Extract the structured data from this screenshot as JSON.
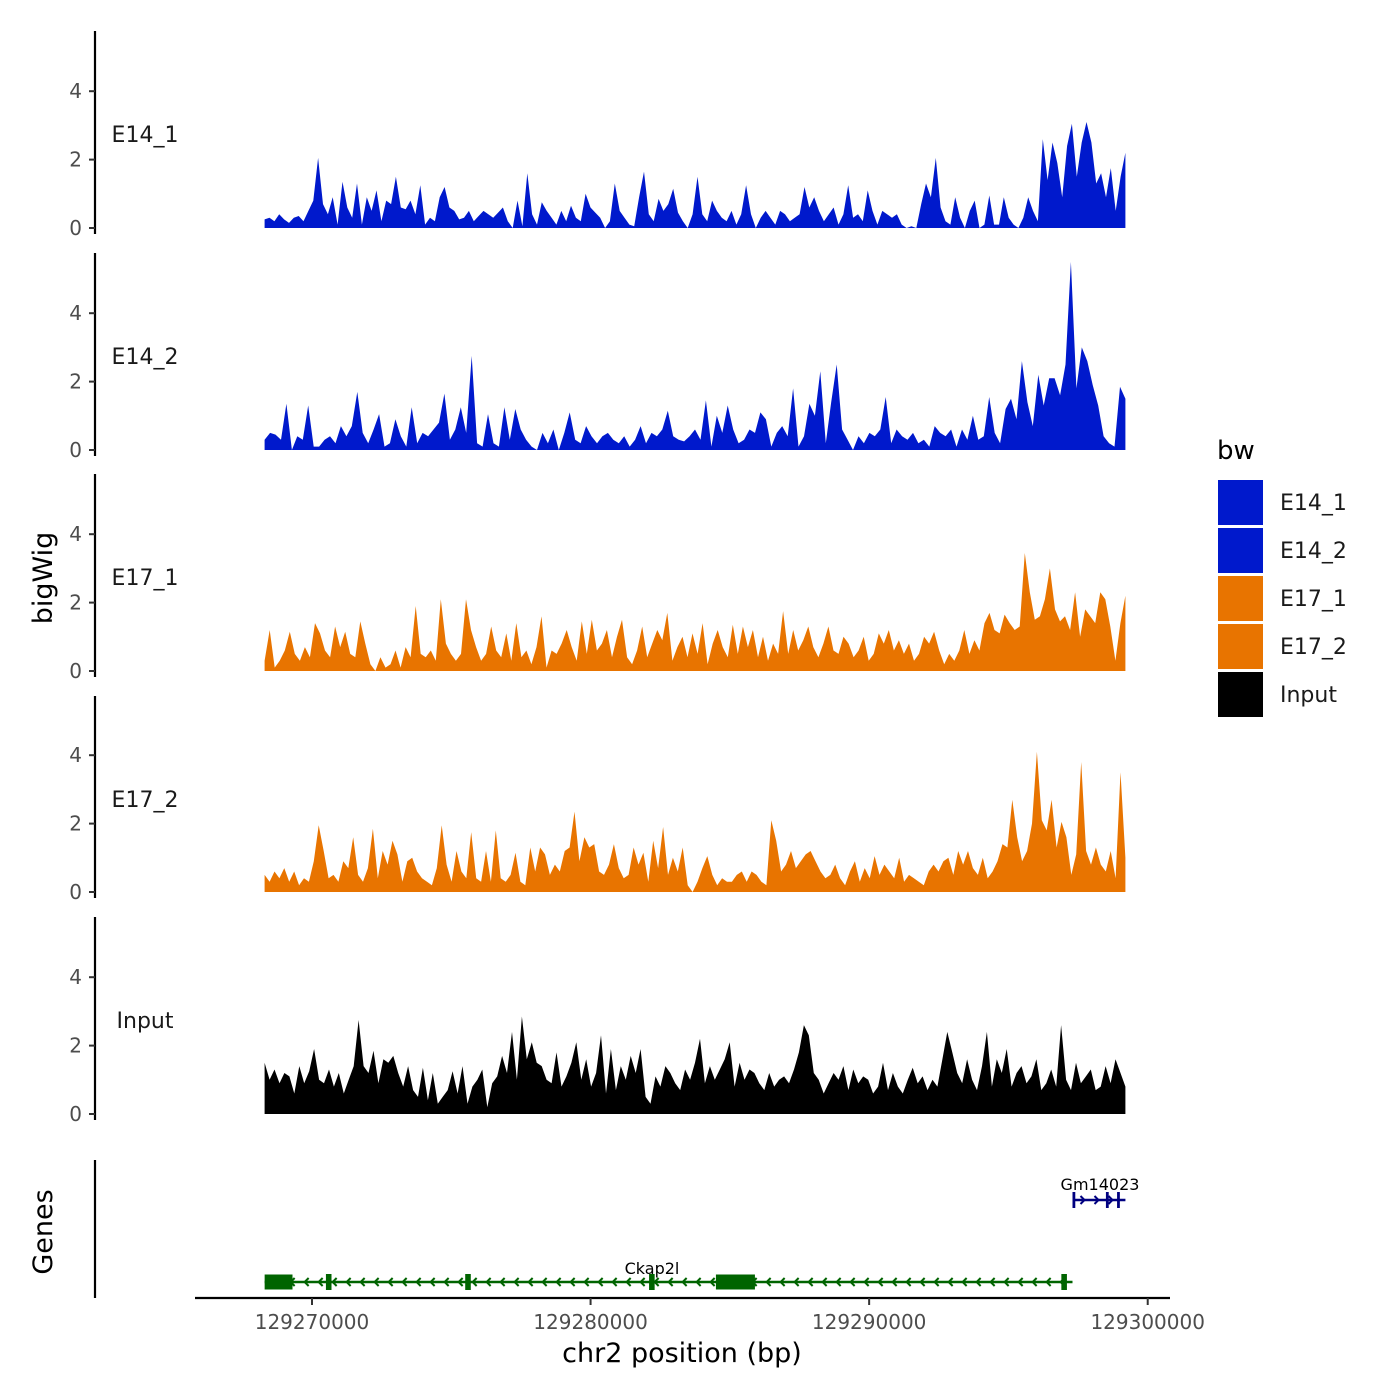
{
  "chart_data": {
    "type": "area",
    "title": "",
    "ylabel": "bigWig",
    "genes_ylabel": "Genes",
    "xlabel": "chr2 position (bp)",
    "xlim": [
      129265800,
      129300800
    ],
    "data_range": [
      129268300,
      129299200
    ],
    "ylim": [
      0,
      5.8
    ],
    "yticks": [
      0,
      2,
      4
    ],
    "xticks": [
      129270000,
      129280000,
      129290000,
      129300000
    ],
    "xtick_labels": [
      "129270000",
      "129280000",
      "129290000",
      "129300000"
    ],
    "legend": {
      "title": "bw",
      "position": "right",
      "entries": [
        {
          "name": "E14_1",
          "color": "#0019CC"
        },
        {
          "name": "E14_2",
          "color": "#0019CC"
        },
        {
          "name": "E17_1",
          "color": "#E87400"
        },
        {
          "name": "E17_2",
          "color": "#E87400"
        },
        {
          "name": "Input",
          "color": "#000000"
        }
      ]
    },
    "tracks": [
      {
        "name": "E14_1",
        "color": "#0019CC",
        "values": [
          0.25,
          0.3,
          0.2,
          0.4,
          0.25,
          0.15,
          0.3,
          0.35,
          0.2,
          0.5,
          0.8,
          2.05,
          0.7,
          0.4,
          0.9,
          0.1,
          1.35,
          0.6,
          0.3,
          1.3,
          0.1,
          0.9,
          0.5,
          1.1,
          0.2,
          0.8,
          0.7,
          1.5,
          0.6,
          0.55,
          0.8,
          0.4,
          1.25,
          0.1,
          0.3,
          0.2,
          0.9,
          1.2,
          0.6,
          0.5,
          0.25,
          0.3,
          0.5,
          0.2,
          0.35,
          0.5,
          0.4,
          0.3,
          0.45,
          0.6,
          0.2,
          0,
          0.8,
          0.05,
          1.6,
          0.4,
          0.1,
          0.75,
          0.5,
          0.3,
          0.1,
          0.5,
          0.2,
          0.65,
          0.3,
          0.2,
          1.0,
          0.6,
          0.45,
          0.3,
          0,
          0.2,
          1.3,
          0.5,
          0.3,
          0.1,
          0.05,
          0.9,
          1.65,
          0.4,
          0.2,
          0.85,
          0.5,
          0.7,
          1.15,
          0.45,
          0.2,
          0,
          0.4,
          1.5,
          0.4,
          0.2,
          0.8,
          0.5,
          0.3,
          0.2,
          0.5,
          0.1,
          0.4,
          1.25,
          0.4,
          0,
          0.3,
          0.5,
          0.3,
          0.1,
          0.5,
          0.4,
          0.2,
          0.3,
          0.4,
          1.2,
          0.6,
          0.9,
          0.5,
          0.2,
          0.4,
          0.6,
          0.1,
          0.4,
          1.25,
          0.3,
          0.4,
          0.2,
          1.1,
          0.5,
          0.1,
          0.5,
          0.4,
          0.3,
          0.4,
          0.1,
          0,
          0.05,
          0,
          0.7,
          1.3,
          0.9,
          2.05,
          0.6,
          0.2,
          0.1,
          0.9,
          0.3,
          0,
          0.5,
          0.8,
          0,
          0.1,
          0.95,
          0.1,
          0.1,
          0.9,
          0.3,
          0.1,
          0,
          0.3,
          0.9,
          0.5,
          0.2,
          2.6,
          1.4,
          2.5,
          1.9,
          0.9,
          2.4,
          3.05,
          1.5,
          2.5,
          3.1,
          2.5,
          1.3,
          1.6,
          0.9,
          1.75,
          0.5,
          1.5,
          2.2
        ]
      },
      {
        "name": "E14_2",
        "color": "#0019CC",
        "values": [
          0.3,
          0.5,
          0.45,
          0.3,
          1.35,
          0,
          0.4,
          0.3,
          1.3,
          0.1,
          0.1,
          0.3,
          0.4,
          0.2,
          0.7,
          0.4,
          0.7,
          1.7,
          0.5,
          0.2,
          0.6,
          1.05,
          0.1,
          0.2,
          0.9,
          0.4,
          0.1,
          1.25,
          0.2,
          0.5,
          0.4,
          0.6,
          0.8,
          1.65,
          0.3,
          0.6,
          1.25,
          0.5,
          2.75,
          0.2,
          0.1,
          1.05,
          0.2,
          0.1,
          1.25,
          0.3,
          1.2,
          0.6,
          0.3,
          0.1,
          0,
          0.5,
          0.2,
          0.6,
          0,
          0.5,
          1.1,
          0.3,
          0.2,
          0.7,
          0.4,
          0.2,
          0.4,
          0.5,
          0.3,
          0.2,
          0.4,
          0.1,
          0.3,
          0.7,
          0.2,
          0.5,
          0.4,
          0.6,
          1.15,
          0.4,
          0.3,
          0.25,
          0.4,
          0.6,
          0.3,
          1.45,
          0.1,
          1.0,
          0.5,
          1.3,
          0.6,
          0.2,
          0.3,
          0.6,
          0.5,
          1.1,
          0.9,
          0.1,
          0.5,
          0.7,
          0.4,
          1.8,
          0.1,
          0.4,
          1.35,
          1.0,
          2.3,
          0.2,
          1.4,
          2.5,
          0.6,
          0.3,
          0,
          0.4,
          0.2,
          0.5,
          0.4,
          0.6,
          1.55,
          0.2,
          0.6,
          0.4,
          0.3,
          0.5,
          0.2,
          0.3,
          0.1,
          0.7,
          0.5,
          0.4,
          0.6,
          0.1,
          0.6,
          0.3,
          1.0,
          0.3,
          0.4,
          1.55,
          0.5,
          0.2,
          1.2,
          1.5,
          0.9,
          2.6,
          1.4,
          0.7,
          2.2,
          1.3,
          2.1,
          2.1,
          1.6,
          2.5,
          5.5,
          1.8,
          3.0,
          2.6,
          1.9,
          1.3,
          0.4,
          0.2,
          0.1,
          1.85,
          1.5
        ]
      },
      {
        "name": "E17_1",
        "color": "#E87400",
        "values": [
          0.3,
          1.2,
          0.1,
          0.3,
          0.6,
          1.15,
          0.5,
          0.3,
          0.7,
          0.4,
          1.4,
          1.1,
          0.6,
          0.4,
          1.3,
          0.7,
          1.15,
          0.5,
          0.4,
          1.45,
          0.8,
          0.2,
          0,
          0.4,
          0.1,
          0.2,
          0.6,
          0.1,
          0.7,
          0.4,
          1.9,
          0.5,
          0.4,
          0.6,
          0.3,
          2.1,
          0.8,
          0.5,
          0.3,
          0.5,
          2.1,
          1.2,
          0.7,
          0.3,
          0.5,
          1.3,
          0.6,
          0.4,
          1.1,
          0.3,
          1.4,
          0.4,
          0.6,
          0.2,
          0.7,
          1.6,
          0.1,
          0.6,
          0.5,
          0.8,
          1.2,
          0.7,
          0.3,
          1.45,
          0.5,
          1.5,
          0.6,
          0.8,
          1.2,
          0.4,
          1.0,
          1.5,
          0.4,
          0.2,
          0.6,
          1.3,
          0.4,
          0.8,
          1.2,
          0.9,
          1.7,
          0.3,
          0.7,
          1.0,
          0.4,
          1.1,
          0.5,
          1.4,
          0.2,
          0.8,
          1.2,
          0.7,
          0.4,
          1.35,
          0.5,
          1.3,
          0.7,
          1.2,
          0.4,
          1.0,
          0.3,
          0.8,
          0.5,
          1.75,
          0.5,
          1.2,
          0.6,
          0.9,
          1.3,
          0.7,
          0.4,
          0.8,
          1.3,
          0.6,
          0.5,
          1.0,
          0.8,
          0.4,
          0.6,
          1.0,
          0.3,
          0.5,
          1.1,
          0.8,
          1.2,
          0.6,
          0.9,
          0.5,
          0.8,
          0.3,
          0.5,
          1.0,
          0.8,
          1.15,
          0.6,
          0.2,
          0.5,
          0.3,
          0.6,
          1.2,
          0.5,
          0.9,
          0.6,
          1.4,
          1.7,
          1.2,
          1.1,
          1.65,
          1.4,
          1.2,
          1.3,
          3.45,
          2.3,
          1.5,
          1.6,
          2.1,
          3.0,
          1.8,
          1.45,
          1.6,
          1.2,
          2.3,
          1.0,
          1.8,
          1.6,
          1.4,
          2.3,
          2.1,
          1.3,
          0.3,
          1.4,
          2.2
        ]
      },
      {
        "name": "E17_2",
        "color": "#E87400",
        "values": [
          0.5,
          0.3,
          0.6,
          0.4,
          0.7,
          0.3,
          0.6,
          0.2,
          0.4,
          0.3,
          0.9,
          1.95,
          1.2,
          0.4,
          0.5,
          0.3,
          0.9,
          0.7,
          1.6,
          0.5,
          0.3,
          0.7,
          1.85,
          0.4,
          1.2,
          0.8,
          1.5,
          1.1,
          0.3,
          0.9,
          1.0,
          0.6,
          0.4,
          0.3,
          0.2,
          0.7,
          1.95,
          0.8,
          0.3,
          1.2,
          0.6,
          0.4,
          1.75,
          0.4,
          0.3,
          1.2,
          0.3,
          1.8,
          0.4,
          0.3,
          0.5,
          1.15,
          0.3,
          0.2,
          1.3,
          0.6,
          1.3,
          1.1,
          0.5,
          0.8,
          0.6,
          1.2,
          1.3,
          2.35,
          0.9,
          1.6,
          1.3,
          1.4,
          0.6,
          0.5,
          0.8,
          1.4,
          0.7,
          0.4,
          0.5,
          1.3,
          0.8,
          1.15,
          0.3,
          1.5,
          0.7,
          1.9,
          0.5,
          1.0,
          0.6,
          1.3,
          0.2,
          0,
          0.3,
          0.7,
          1.05,
          0.5,
          0.2,
          0.4,
          0.3,
          0.3,
          0.5,
          0.6,
          0.3,
          0.6,
          0.5,
          0.3,
          0.2,
          2.1,
          1.5,
          0.6,
          0.8,
          1.2,
          0.7,
          0.9,
          1.1,
          1.2,
          0.9,
          0.6,
          0.4,
          0.5,
          0.8,
          0.4,
          0.2,
          0.6,
          0.9,
          0.3,
          0.7,
          0.4,
          1.05,
          0.5,
          0.8,
          0.6,
          0.4,
          1.0,
          0.3,
          0.5,
          0.4,
          0.3,
          0.2,
          0.6,
          0.8,
          0.6,
          0.9,
          1.0,
          0.5,
          1.2,
          0.8,
          1.2,
          0.7,
          0.5,
          1.0,
          0.4,
          0.6,
          0.9,
          1.4,
          1.3,
          2.7,
          1.6,
          0.9,
          1.2,
          2.0,
          4.1,
          2.1,
          1.8,
          2.7,
          1.3,
          2.05,
          1.6,
          0.5,
          1.1,
          3.8,
          1.2,
          0.8,
          1.3,
          0.8,
          0.6,
          1.2,
          0.4,
          3.5,
          1.0
        ]
      },
      {
        "name": "Input",
        "color": "#000000",
        "values": [
          1.5,
          1.0,
          1.3,
          0.9,
          1.2,
          1.1,
          0.6,
          1.4,
          0.9,
          1.25,
          1.9,
          1.0,
          0.9,
          1.3,
          0.8,
          1.2,
          0.6,
          1.0,
          1.4,
          2.75,
          1.4,
          1.2,
          1.85,
          0.9,
          1.6,
          1.5,
          1.7,
          1.2,
          0.8,
          1.4,
          0.7,
          0.5,
          1.35,
          0.4,
          1.2,
          0.3,
          0.5,
          0.7,
          1.25,
          0.6,
          1.4,
          0.3,
          0.8,
          1.0,
          1.3,
          0.2,
          0.9,
          1.1,
          1.7,
          1.2,
          2.4,
          1.0,
          2.85,
          1.6,
          2.1,
          1.5,
          1.4,
          1.0,
          0.9,
          1.8,
          0.8,
          1.1,
          1.5,
          2.1,
          1.0,
          1.6,
          0.8,
          1.2,
          2.3,
          0.6,
          1.9,
          0.7,
          1.4,
          1.0,
          1.7,
          1.2,
          1.9,
          0.5,
          0.3,
          1.1,
          0.8,
          1.4,
          1.2,
          0.9,
          0.7,
          1.3,
          1.0,
          1.5,
          2.2,
          0.9,
          1.4,
          1.0,
          1.3,
          1.6,
          2.1,
          0.8,
          1.5,
          1.0,
          1.3,
          1.2,
          0.9,
          0.7,
          1.2,
          0.8,
          1.0,
          1.1,
          0.9,
          1.3,
          1.8,
          2.6,
          2.3,
          1.2,
          1.0,
          0.6,
          0.9,
          1.2,
          1.0,
          1.4,
          0.7,
          1.3,
          0.9,
          1.1,
          1.0,
          0.6,
          0.8,
          1.5,
          0.7,
          1.2,
          0.8,
          0.6,
          1.0,
          1.35,
          0.9,
          1.1,
          0.7,
          1.0,
          0.8,
          1.6,
          2.4,
          1.8,
          1.2,
          0.9,
          1.6,
          1.0,
          0.7,
          1.4,
          2.4,
          0.8,
          1.6,
          1.2,
          1.9,
          0.8,
          1.2,
          1.4,
          0.9,
          1.1,
          1.6,
          0.7,
          0.9,
          1.3,
          0.8,
          2.6,
          1.0,
          0.7,
          1.5,
          0.9,
          1.1,
          1.3,
          0.7,
          0.8,
          1.4,
          0.9,
          1.6,
          1.2,
          0.8
        ]
      }
    ],
    "genes": [
      {
        "name": "Ckap2l",
        "strand": "-",
        "color": "#006400",
        "start": 129268300,
        "end": 129297300,
        "exons": [
          [
            129268300,
            129269300
          ],
          [
            129270500,
            129270700
          ],
          [
            129275500,
            129275700
          ],
          [
            129282100,
            129282300
          ],
          [
            129284500,
            129285900
          ],
          [
            129296900,
            129297100
          ]
        ]
      },
      {
        "name": "Gm14023",
        "strand": "+",
        "color": "#000080",
        "start": 129297300,
        "end": 129299200,
        "exons": [
          [
            129297300,
            129297400
          ],
          [
            129298500,
            129298600
          ],
          [
            129298900,
            129299000
          ]
        ]
      }
    ]
  }
}
